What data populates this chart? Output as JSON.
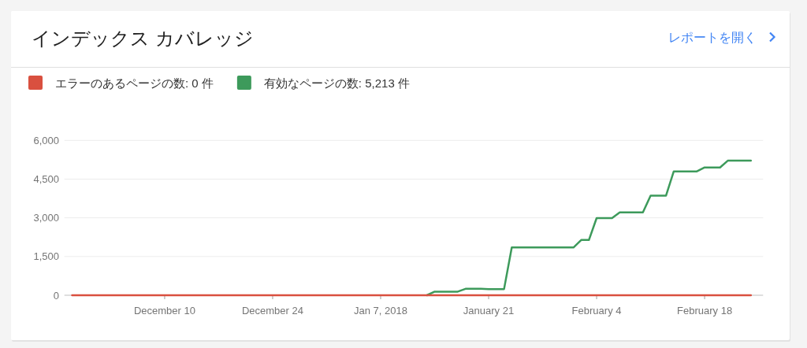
{
  "chart_data": {
    "type": "line",
    "title": "インデックス カバレッジ",
    "annotations": [
      "レポートを開く"
    ],
    "xlim": [
      "2017-11-27",
      "2018-02-25T14:00"
    ],
    "xticks": [
      {
        "value": "2017-12-10",
        "label": "December 10"
      },
      {
        "value": "2017-12-24",
        "label": "December 24"
      },
      {
        "value": "2018-01-07",
        "label": "Jan 7, 2018"
      },
      {
        "value": "2018-01-21",
        "label": "January 21"
      },
      {
        "value": "2018-02-04",
        "label": "February 4"
      },
      {
        "value": "2018-02-18",
        "label": "February 18"
      }
    ],
    "ylim": [
      0,
      6000
    ],
    "yticks": [
      0,
      {
        "value": 1500,
        "label": "1,500"
      },
      {
        "value": 3000,
        "label": "3,000"
      },
      {
        "value": 4500,
        "label": "4,500"
      },
      {
        "value": 6000,
        "label": "6,000"
      }
    ],
    "grid": "y",
    "legend": "top left",
    "marker": "none",
    "line_style": "solid",
    "series": [
      {
        "name": "エラーのあるページの数: 0 件",
        "color": "#d9503f",
        "x": [
          "2017-11-28",
          "2018-02-24"
        ],
        "values": [
          0,
          0
        ]
      },
      {
        "name": "有効なページの数: 5,213 件",
        "color": "#3d9a5b",
        "x": [
          "2018-01-13",
          "2018-01-14",
          "2018-01-17",
          "2018-01-18",
          "2018-01-20",
          "2018-01-21",
          "2018-01-23",
          "2018-01-24",
          "2018-02-01",
          "2018-02-02",
          "2018-02-03",
          "2018-02-04",
          "2018-02-06",
          "2018-02-07",
          "2018-02-10",
          "2018-02-11",
          "2018-02-13",
          "2018-02-14",
          "2018-02-17",
          "2018-02-18",
          "2018-02-20",
          "2018-02-21",
          "2018-02-24"
        ],
        "values": [
          0,
          140,
          140,
          250,
          250,
          240,
          240,
          1850,
          1850,
          2140,
          2140,
          2990,
          2990,
          3210,
          3210,
          3860,
          3860,
          4800,
          4800,
          4950,
          4950,
          5213,
          5213
        ]
      }
    ]
  }
}
